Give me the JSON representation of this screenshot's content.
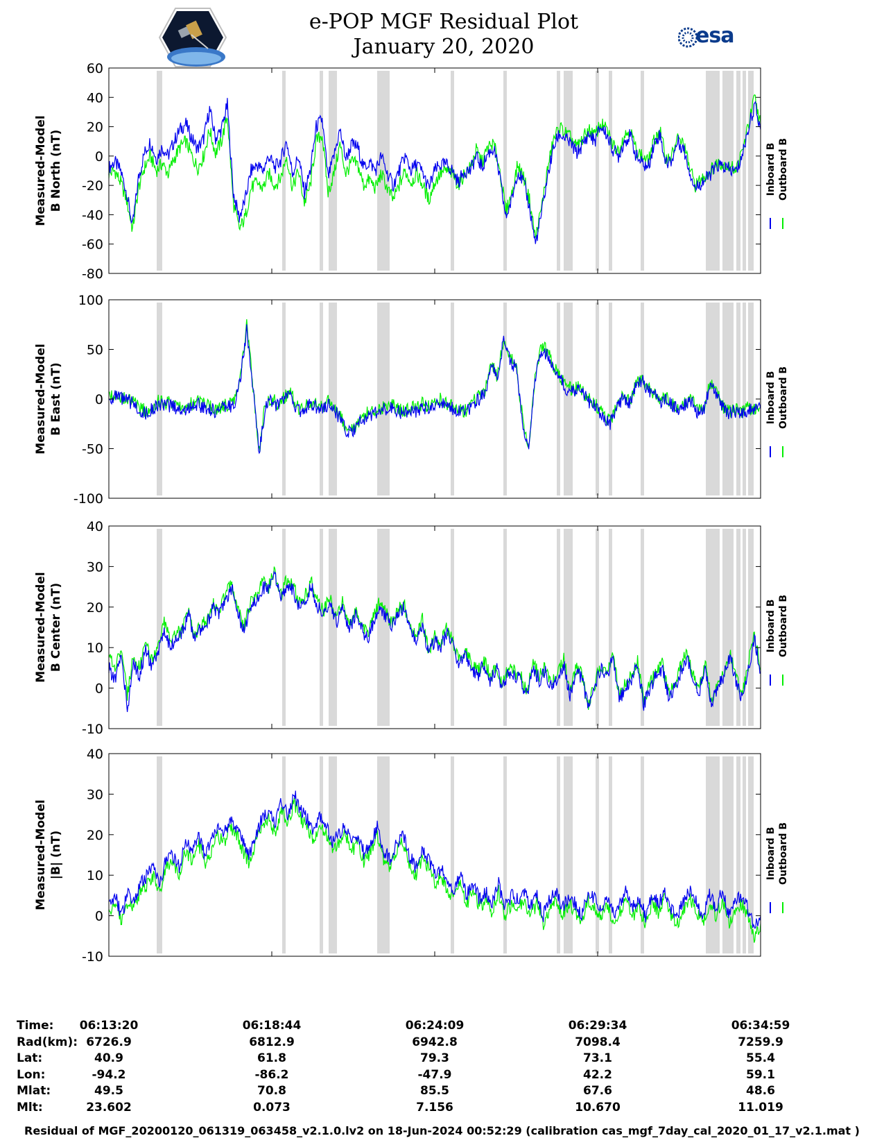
{
  "header": {
    "title_line1": "e-POP MGF Residual Plot",
    "title_line2": "January 20, 2020",
    "esa_logo_text": "esa"
  },
  "colors": {
    "inboard": "#0000ee",
    "outboard": "#00ee00",
    "gap_shading": "#d9d9d9",
    "esa_brand": "#0b3b8c"
  },
  "chart_data": [
    {
      "type": "line",
      "ylabel_line1": "Measured-Model",
      "ylabel_line2": "B North (nT)",
      "ylim": [
        -80,
        60
      ],
      "yticks": [
        60,
        40,
        20,
        0,
        -20,
        -40,
        -60,
        -80
      ],
      "series": [
        {
          "name": "Inboard B",
          "color": "#0000ee",
          "values": [
            -8,
            -4,
            -10,
            -25,
            -48,
            -15,
            2,
            10,
            -2,
            6,
            0,
            10,
            18,
            22,
            12,
            5,
            12,
            32,
            12,
            18,
            35,
            -25,
            -42,
            -30,
            -10,
            -6,
            -10,
            0,
            -8,
            -3,
            10,
            -12,
            0,
            -25,
            -10,
            20,
            25,
            -15,
            0,
            18,
            -2,
            8,
            6,
            -8,
            -4,
            -10,
            0,
            -12,
            -20,
            -10,
            0,
            -10,
            -5,
            -12,
            -22,
            -10,
            -6,
            -6,
            -10,
            -18,
            -10,
            -10,
            0,
            -8,
            2,
            5,
            -15,
            -42,
            -30,
            -10,
            -18,
            -35,
            -60,
            -40,
            -15,
            5,
            15,
            12,
            8,
            2,
            8,
            15,
            10,
            20,
            15,
            5,
            0,
            10,
            14,
            0,
            -5,
            -8,
            8,
            15,
            -5,
            -3,
            10,
            5,
            -10,
            -22,
            -18,
            -15,
            -10,
            -6,
            -8,
            -10,
            -10,
            2,
            20,
            35,
            18
          ]
        },
        {
          "name": "Outboard B",
          "color": "#00ee00",
          "values": [
            -12,
            -10,
            -18,
            -30,
            -50,
            -22,
            -8,
            0,
            -10,
            -5,
            -12,
            -2,
            6,
            10,
            0,
            -8,
            0,
            18,
            2,
            10,
            28,
            -32,
            -50,
            -42,
            -22,
            -18,
            -22,
            -12,
            -20,
            -15,
            0,
            -22,
            -10,
            -32,
            -20,
            10,
            15,
            -25,
            -12,
            8,
            -12,
            -4,
            -6,
            -20,
            -16,
            -22,
            -12,
            -22,
            -30,
            -20,
            -10,
            -18,
            -12,
            -20,
            -30,
            -18,
            -12,
            -10,
            -12,
            -20,
            -12,
            -8,
            4,
            -4,
            6,
            8,
            -10,
            -38,
            -26,
            -6,
            -14,
            -30,
            -56,
            -36,
            -10,
            10,
            20,
            16,
            12,
            6,
            12,
            18,
            14,
            22,
            18,
            8,
            4,
            14,
            18,
            4,
            0,
            -4,
            10,
            18,
            -2,
            0,
            12,
            8,
            -8,
            -20,
            -16,
            -12,
            -8,
            -4,
            -6,
            -8,
            -8,
            4,
            22,
            40,
            22
          ]
        }
      ]
    },
    {
      "type": "line",
      "ylabel_line1": "Measured-Model",
      "ylabel_line2": "B East (nT)",
      "ylim": [
        -100,
        100
      ],
      "yticks": [
        100,
        50,
        0,
        -50,
        -100
      ],
      "series": [
        {
          "name": "Inboard B",
          "color": "#0000ee",
          "values": [
            0,
            2,
            0,
            -2,
            -5,
            -12,
            -15,
            -10,
            -5,
            -8,
            -6,
            -10,
            -12,
            -8,
            -5,
            -8,
            -10,
            -12,
            -10,
            -8,
            -5,
            20,
            70,
            10,
            -55,
            -5,
            -2,
            -8,
            0,
            5,
            -10,
            -15,
            -5,
            -8,
            -10,
            -5,
            -12,
            -20,
            -35,
            -32,
            -25,
            -18,
            -15,
            -12,
            -10,
            -8,
            -12,
            -15,
            -10,
            -12,
            -8,
            -10,
            -5,
            -3,
            -8,
            -10,
            -12,
            -15,
            -5,
            0,
            5,
            35,
            20,
            60,
            40,
            30,
            -20,
            -55,
            20,
            50,
            45,
            30,
            20,
            10,
            8,
            10,
            2,
            -5,
            -10,
            -20,
            -25,
            -10,
            0,
            -5,
            10,
            20,
            8,
            5,
            -2,
            0,
            -8,
            -10,
            -5,
            -3,
            -15,
            -10,
            15,
            5,
            -10,
            -15,
            -12,
            -15,
            -10,
            -12,
            -10
          ]
        },
        {
          "name": "Outboard B",
          "color": "#00ee00",
          "values": [
            4,
            5,
            3,
            0,
            -3,
            -10,
            -12,
            -8,
            -2,
            -5,
            -3,
            -8,
            -10,
            -5,
            -2,
            -5,
            -8,
            -10,
            -8,
            -5,
            -2,
            22,
            75,
            12,
            -52,
            -2,
            0,
            -5,
            2,
            7,
            -8,
            -12,
            -2,
            -5,
            -8,
            -2,
            -10,
            -18,
            -32,
            -30,
            -22,
            -15,
            -12,
            -10,
            -8,
            -5,
            -10,
            -12,
            -8,
            -10,
            -5,
            -8,
            -2,
            0,
            -5,
            -8,
            -10,
            -12,
            -3,
            2,
            7,
            36,
            22,
            62,
            42,
            32,
            -18,
            -52,
            22,
            54,
            48,
            32,
            22,
            12,
            10,
            12,
            4,
            -3,
            -8,
            -18,
            -22,
            -8,
            2,
            -3,
            12,
            22,
            10,
            7,
            0,
            2,
            -6,
            -8,
            -3,
            -1,
            -12,
            -8,
            17,
            7,
            -8,
            -12,
            -10,
            -12,
            -8,
            -10,
            -8
          ]
        }
      ]
    },
    {
      "type": "line",
      "ylabel_line1": "Measured-Model",
      "ylabel_line2": "B Center (nT)",
      "ylim": [
        -10,
        40
      ],
      "yticks": [
        40,
        30,
        20,
        10,
        0,
        -10
      ],
      "series": [
        {
          "name": "Inboard B",
          "color": "#0000ee",
          "values": [
            5,
            2,
            8,
            -5,
            6,
            3,
            10,
            5,
            8,
            15,
            10,
            12,
            14,
            18,
            12,
            15,
            16,
            20,
            18,
            22,
            25,
            18,
            14,
            20,
            22,
            25,
            24,
            28,
            22,
            26,
            24,
            20,
            22,
            25,
            20,
            18,
            22,
            16,
            20,
            14,
            18,
            15,
            12,
            16,
            20,
            18,
            15,
            18,
            20,
            14,
            12,
            16,
            8,
            12,
            10,
            14,
            10,
            6,
            8,
            5,
            3,
            6,
            2,
            5,
            0,
            4,
            3,
            2,
            -2,
            5,
            2,
            4,
            0,
            3,
            6,
            -2,
            4,
            2,
            -5,
            0,
            5,
            3,
            8,
            -3,
            0,
            2,
            6,
            -4,
            0,
            3,
            5,
            -2,
            0,
            4,
            8,
            2,
            -1,
            5,
            -4,
            0,
            3,
            8,
            2,
            -3,
            5,
            12,
            4
          ]
        },
        {
          "name": "Outboard B",
          "color": "#00ee00",
          "values": [
            8,
            5,
            10,
            -2,
            8,
            5,
            12,
            7,
            10,
            16,
            12,
            13,
            15,
            19,
            13,
            16,
            17,
            21,
            19,
            23,
            26,
            19,
            15,
            21,
            23,
            26,
            25,
            29,
            23,
            27,
            25,
            21,
            23,
            26,
            21,
            19,
            23,
            17,
            21,
            15,
            19,
            16,
            13,
            17,
            21,
            19,
            16,
            19,
            21,
            15,
            13,
            17,
            9,
            13,
            11,
            15,
            11,
            7,
            9,
            6,
            4,
            7,
            3,
            6,
            1,
            5,
            4,
            3,
            -1,
            6,
            3,
            5,
            1,
            4,
            7,
            -1,
            5,
            3,
            -4,
            1,
            6,
            4,
            9,
            -2,
            1,
            3,
            7,
            -3,
            1,
            4,
            6,
            -1,
            1,
            5,
            9,
            3,
            0,
            6,
            -3,
            1,
            4,
            9,
            3,
            -2,
            6,
            13,
            5
          ]
        }
      ]
    },
    {
      "type": "line",
      "ylabel_line1": "Measured-Model",
      "ylabel_line2": "|B| (nT)",
      "ylim": [
        -10,
        40
      ],
      "yticks": [
        40,
        30,
        20,
        10,
        0,
        -10
      ],
      "series": [
        {
          "name": "Inboard B",
          "color": "#0000ee",
          "values": [
            2,
            5,
            0,
            6,
            3,
            8,
            10,
            12,
            8,
            14,
            15,
            12,
            18,
            16,
            20,
            15,
            18,
            22,
            20,
            24,
            22,
            18,
            15,
            20,
            24,
            26,
            22,
            28,
            25,
            30,
            26,
            24,
            20,
            25,
            22,
            18,
            20,
            22,
            18,
            20,
            15,
            18,
            22,
            16,
            14,
            18,
            20,
            15,
            12,
            16,
            14,
            10,
            12,
            8,
            6,
            10,
            5,
            8,
            4,
            6,
            3,
            8,
            2,
            5,
            4,
            6,
            2,
            5,
            0,
            4,
            6,
            2,
            5,
            3,
            0,
            6,
            4,
            2,
            5,
            0,
            3,
            6,
            2,
            4,
            0,
            5,
            3,
            6,
            2,
            0,
            4,
            6,
            3,
            0,
            5,
            2,
            6,
            0,
            3,
            5,
            2,
            -3,
            0
          ]
        },
        {
          "name": "Outboard B",
          "color": "#00ee00",
          "values": [
            0,
            3,
            -2,
            4,
            2,
            6,
            8,
            10,
            6,
            12,
            13,
            10,
            16,
            14,
            18,
            13,
            16,
            20,
            18,
            22,
            20,
            16,
            13,
            18,
            22,
            24,
            20,
            26,
            23,
            28,
            24,
            22,
            18,
            23,
            20,
            16,
            18,
            20,
            16,
            18,
            13,
            16,
            20,
            14,
            12,
            16,
            18,
            13,
            10,
            14,
            12,
            8,
            10,
            6,
            4,
            8,
            3,
            6,
            2,
            4,
            1,
            6,
            0,
            3,
            2,
            4,
            0,
            3,
            -2,
            2,
            4,
            0,
            3,
            1,
            -2,
            4,
            2,
            0,
            3,
            -2,
            1,
            4,
            0,
            2,
            -2,
            3,
            1,
            4,
            0,
            -2,
            2,
            4,
            1,
            -2,
            3,
            0,
            4,
            -2,
            1,
            3,
            0,
            -5,
            -2
          ]
        }
      ]
    }
  ],
  "x_axis": {
    "tick_times": [
      "06:13:20",
      "06:18:44",
      "06:24:09",
      "06:29:34",
      "06:34:59"
    ]
  },
  "info_table": {
    "rows": [
      {
        "label": "Time:",
        "values": [
          "06:13:20",
          "06:18:44",
          "06:24:09",
          "06:29:34",
          "06:34:59"
        ]
      },
      {
        "label": "Rad(km):",
        "values": [
          "6726.9",
          "6812.9",
          "6942.8",
          "7098.4",
          "7259.9"
        ]
      },
      {
        "label": "Lat:",
        "values": [
          "40.9",
          "61.8",
          "79.3",
          "73.1",
          "55.4"
        ]
      },
      {
        "label": "Lon:",
        "values": [
          "-94.2",
          "-86.2",
          "-47.9",
          "42.2",
          "59.1"
        ]
      },
      {
        "label": "Mlat:",
        "values": [
          "49.5",
          "70.8",
          "85.5",
          "67.6",
          "48.6"
        ]
      },
      {
        "label": "Mlt:",
        "values": [
          "23.602",
          "0.073",
          "7.156",
          "10.670",
          "11.019"
        ]
      }
    ]
  },
  "footer": {
    "text": "Residual of MGF_20200120_061319_063458_v2.1.0.lv2 on 18-Jun-2024 00:52:29 (calibration cas_mgf_7day_cal_2020_01_17_v2.1.mat )"
  }
}
